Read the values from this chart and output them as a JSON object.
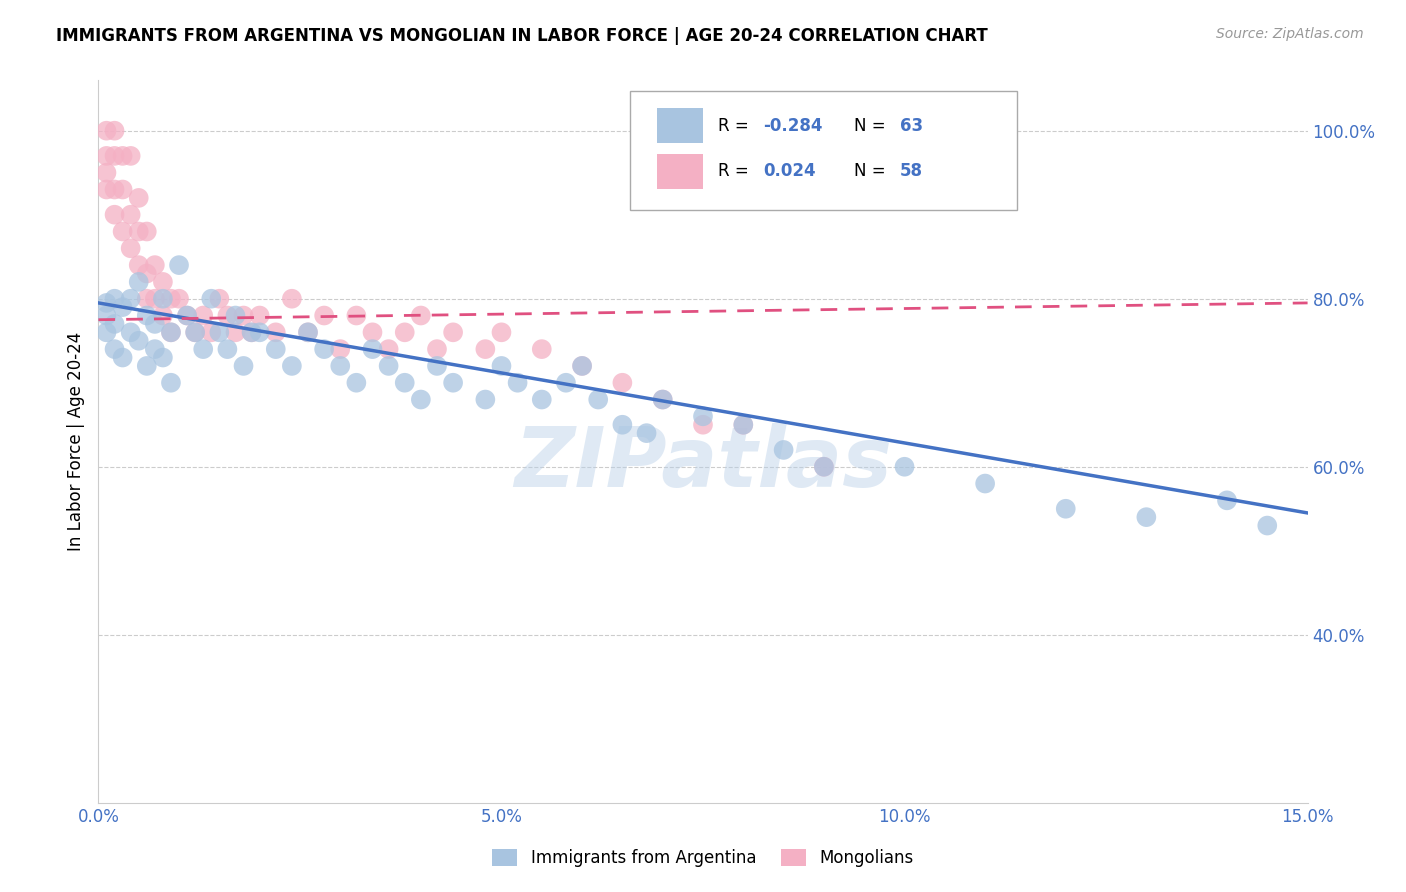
{
  "title": "IMMIGRANTS FROM ARGENTINA VS MONGOLIAN IN LABOR FORCE | AGE 20-24 CORRELATION CHART",
  "source": "Source: ZipAtlas.com",
  "ylabel": "In Labor Force | Age 20-24",
  "xlim": [
    0.0,
    0.15
  ],
  "ylim": [
    0.2,
    1.06
  ],
  "yticks": [
    0.4,
    0.6,
    0.8,
    1.0
  ],
  "ytick_labels": [
    "40.0%",
    "60.0%",
    "80.0%",
    "100.0%"
  ],
  "xticks": [
    0.0,
    0.05,
    0.1,
    0.15
  ],
  "xtick_labels": [
    "0.0%",
    "5.0%",
    "10.0%",
    "15.0%"
  ],
  "legend_r_argentina": "-0.284",
  "legend_n_argentina": "63",
  "legend_r_mongolian": "0.024",
  "legend_n_mongolian": "58",
  "color_argentina": "#a8c4e0",
  "color_mongolian": "#f4b0c4",
  "trendline_argentina_color": "#4472c4",
  "trendline_mongolian_color": "#e05080",
  "trendline_arg_x0": 0.0,
  "trendline_arg_y0": 0.795,
  "trendline_arg_x1": 0.15,
  "trendline_arg_y1": 0.545,
  "trendline_mong_x0": 0.0,
  "trendline_mong_y0": 0.775,
  "trendline_mong_x1": 0.15,
  "trendline_mong_y1": 0.795,
  "watermark": "ZIPatlas",
  "argentina_x": [
    0.001,
    0.001,
    0.001,
    0.002,
    0.002,
    0.002,
    0.003,
    0.003,
    0.004,
    0.004,
    0.005,
    0.005,
    0.006,
    0.006,
    0.007,
    0.007,
    0.008,
    0.008,
    0.009,
    0.009,
    0.01,
    0.011,
    0.012,
    0.013,
    0.014,
    0.015,
    0.016,
    0.017,
    0.018,
    0.019,
    0.02,
    0.022,
    0.024,
    0.026,
    0.028,
    0.03,
    0.032,
    0.034,
    0.036,
    0.038,
    0.04,
    0.042,
    0.044,
    0.048,
    0.05,
    0.052,
    0.055,
    0.058,
    0.06,
    0.062,
    0.065,
    0.068,
    0.07,
    0.075,
    0.08,
    0.085,
    0.09,
    0.1,
    0.11,
    0.12,
    0.13,
    0.14,
    0.145
  ],
  "argentina_y": [
    0.795,
    0.78,
    0.76,
    0.8,
    0.77,
    0.74,
    0.79,
    0.73,
    0.8,
    0.76,
    0.82,
    0.75,
    0.78,
    0.72,
    0.77,
    0.74,
    0.8,
    0.73,
    0.76,
    0.7,
    0.84,
    0.78,
    0.76,
    0.74,
    0.8,
    0.76,
    0.74,
    0.78,
    0.72,
    0.76,
    0.76,
    0.74,
    0.72,
    0.76,
    0.74,
    0.72,
    0.7,
    0.74,
    0.72,
    0.7,
    0.68,
    0.72,
    0.7,
    0.68,
    0.72,
    0.7,
    0.68,
    0.7,
    0.72,
    0.68,
    0.65,
    0.64,
    0.68,
    0.66,
    0.65,
    0.62,
    0.6,
    0.6,
    0.58,
    0.55,
    0.54,
    0.56,
    0.53
  ],
  "mongolian_x": [
    0.001,
    0.001,
    0.001,
    0.001,
    0.002,
    0.002,
    0.002,
    0.002,
    0.003,
    0.003,
    0.003,
    0.004,
    0.004,
    0.004,
    0.005,
    0.005,
    0.005,
    0.006,
    0.006,
    0.006,
    0.007,
    0.007,
    0.008,
    0.008,
    0.009,
    0.009,
    0.01,
    0.011,
    0.012,
    0.013,
    0.014,
    0.015,
    0.016,
    0.017,
    0.018,
    0.019,
    0.02,
    0.022,
    0.024,
    0.026,
    0.028,
    0.03,
    0.032,
    0.034,
    0.036,
    0.038,
    0.04,
    0.042,
    0.044,
    0.048,
    0.05,
    0.055,
    0.06,
    0.065,
    0.07,
    0.075,
    0.08,
    0.09
  ],
  "mongolian_y": [
    1.0,
    0.97,
    0.95,
    0.93,
    1.0,
    0.97,
    0.93,
    0.9,
    0.97,
    0.93,
    0.88,
    0.97,
    0.9,
    0.86,
    0.92,
    0.88,
    0.84,
    0.88,
    0.83,
    0.8,
    0.84,
    0.8,
    0.82,
    0.78,
    0.8,
    0.76,
    0.8,
    0.78,
    0.76,
    0.78,
    0.76,
    0.8,
    0.78,
    0.76,
    0.78,
    0.76,
    0.78,
    0.76,
    0.8,
    0.76,
    0.78,
    0.74,
    0.78,
    0.76,
    0.74,
    0.76,
    0.78,
    0.74,
    0.76,
    0.74,
    0.76,
    0.74,
    0.72,
    0.7,
    0.68,
    0.65,
    0.65,
    0.6
  ]
}
